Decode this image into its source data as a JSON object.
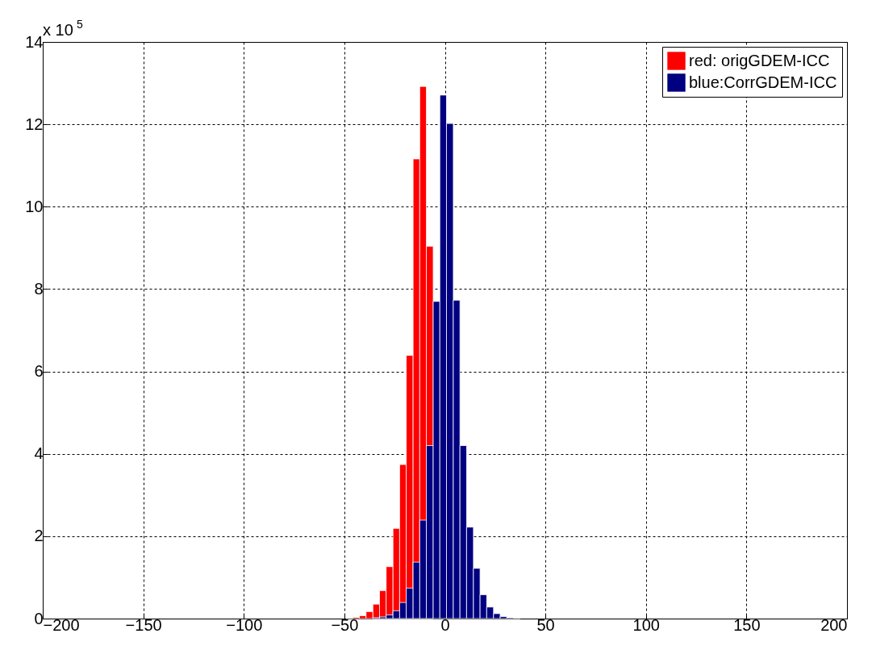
{
  "chart_data": {
    "type": "histogram",
    "bins": [
      -49.2,
      -45.8,
      -42.5,
      -39.2,
      -35.8,
      -32.5,
      -29.2,
      -25.8,
      -22.5,
      -19.2,
      -15.8,
      -12.5,
      -9.2,
      -5.8,
      -2.5,
      0.8,
      4.2,
      7.5,
      10.8,
      14.2,
      17.5,
      20.8,
      24.2,
      27.5,
      30.8,
      34.2,
      37.5
    ],
    "series": [
      {
        "name": "red: origGDEM-ICC",
        "color": "#ff0000",
        "values": [
          0.01,
          0.03,
          0.07,
          0.17,
          0.35,
          0.68,
          1.26,
          2.19,
          3.74,
          6.39,
          11.16,
          12.92,
          9.04,
          null,
          null,
          null,
          null,
          null,
          null,
          null,
          null,
          null,
          null,
          null,
          null,
          null
        ]
      },
      {
        "name": "blue:CorrGDEM-ICC",
        "color": "#000080",
        "values": [
          null,
          null,
          null,
          null,
          0.02,
          0.04,
          0.09,
          0.19,
          0.39,
          0.74,
          1.37,
          2.39,
          4.2,
          7.7,
          12.71,
          12.02,
          7.73,
          4.2,
          2.22,
          1.22,
          0.58,
          0.28,
          0.12,
          0.05,
          0.02,
          0.01
        ]
      }
    ],
    "xlim": [
      -200,
      200
    ],
    "xticks": [
      -200,
      -150,
      -100,
      -50,
      0,
      50,
      100,
      150,
      200
    ],
    "ylim": [
      0,
      14
    ],
    "yticks": [
      0,
      2,
      4,
      6,
      8,
      10,
      12,
      14
    ],
    "grid": true,
    "legend": "top right",
    "annotations": [
      "x 10$^{5}$"
    ]
  }
}
